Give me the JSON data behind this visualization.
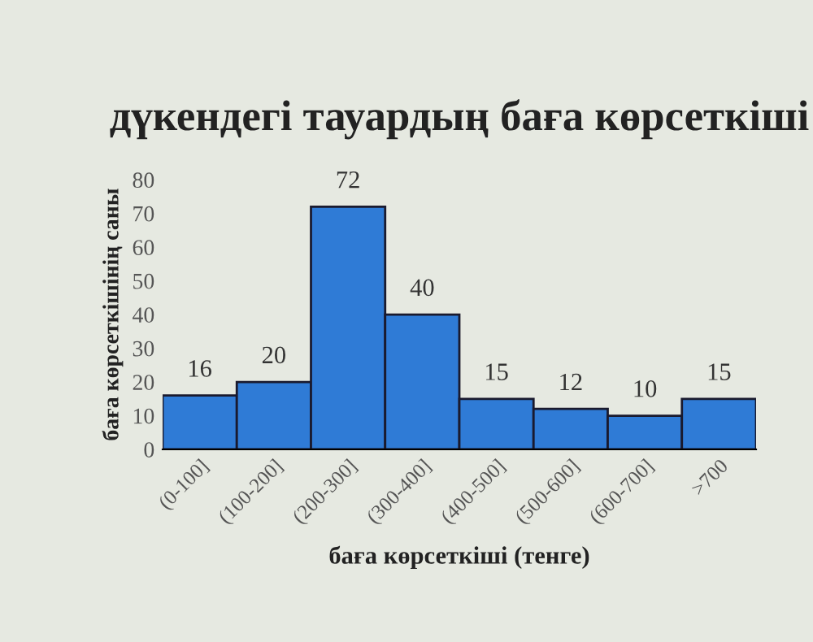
{
  "chart_data": {
    "type": "bar",
    "title": "дүкендегі тауардың баға көрсеткіші",
    "xlabel": "баға көрсеткіші (тенге)",
    "ylabel": "баға көрсеткішінің саны",
    "categories": [
      "(0-100]",
      "(100-200]",
      "(200-300]",
      "(300-400]",
      "(400-500]",
      "(500-600]",
      "(600-700]",
      ">700"
    ],
    "values": [
      16,
      20,
      72,
      40,
      15,
      12,
      10,
      15
    ],
    "color": "#2f7bd6",
    "ylim": [
      0,
      80
    ],
    "yticks": [
      0,
      10,
      20,
      30,
      40,
      50,
      60,
      70,
      80
    ],
    "data_labels": true,
    "grid": false
  }
}
